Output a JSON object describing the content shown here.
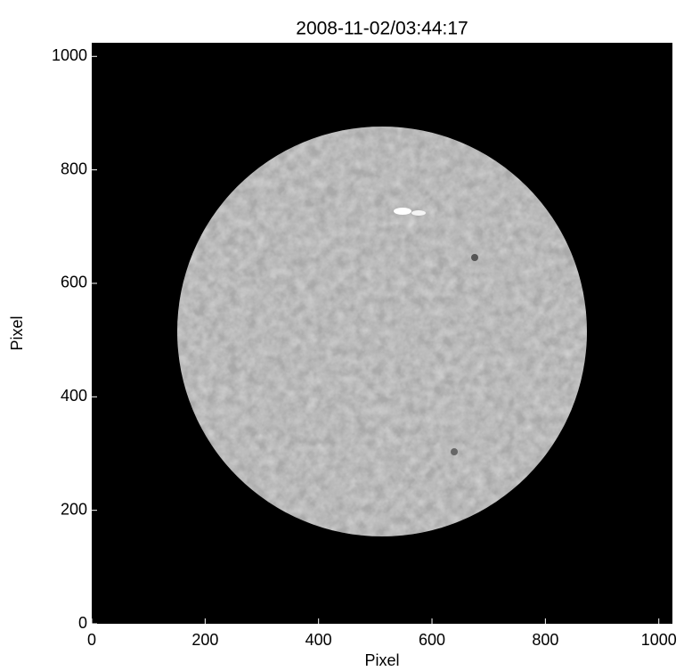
{
  "chart_data": {
    "type": "image",
    "title": "2008-11-02/03:44:17",
    "x_label": "Pixel",
    "y_label": "Pixel",
    "xlim": [
      0,
      1024
    ],
    "ylim": [
      0,
      1024
    ],
    "xticks": [
      0,
      200,
      400,
      600,
      800,
      1000
    ],
    "yticks": [
      0,
      200,
      400,
      600,
      800,
      1000
    ]
  }
}
